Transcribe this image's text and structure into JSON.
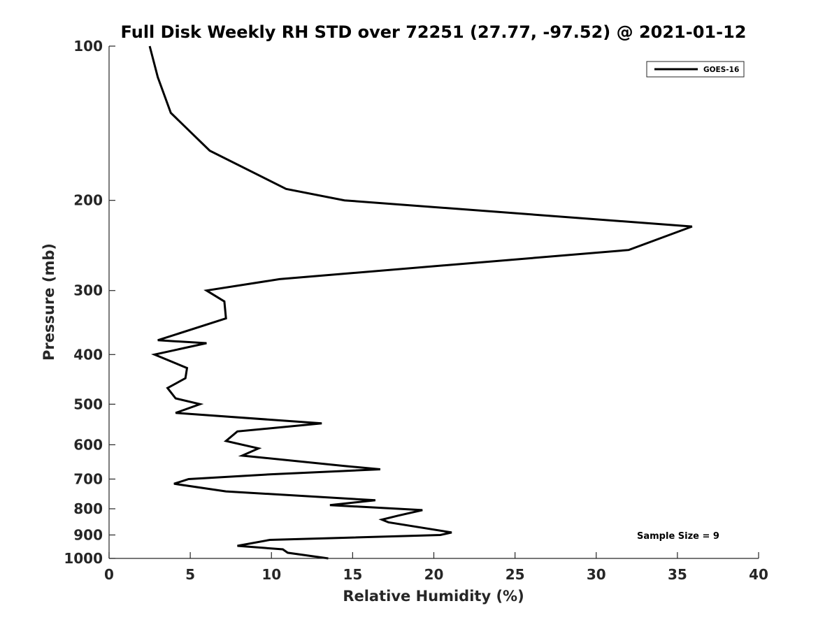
{
  "chart_data": {
    "type": "line",
    "title": "Full Disk Weekly RH STD over 72251 (27.77, -97.52) @ 2021-01-12",
    "xlabel": "Relative Humidity (%)",
    "ylabel": "Pressure (mb)",
    "xlim": [
      0,
      40
    ],
    "ylim": [
      100,
      1000
    ],
    "yscale": "log",
    "yreversed": true,
    "x_ticks": [
      0,
      5,
      10,
      15,
      20,
      25,
      30,
      35,
      40
    ],
    "y_ticks": [
      100,
      200,
      300,
      400,
      500,
      600,
      700,
      800,
      900,
      1000
    ],
    "grid": false,
    "legend_position": "top-right",
    "annotation": "Sample Size = 9",
    "series": [
      {
        "name": "GOES-16",
        "color": "#000000",
        "points": [
          [
            2.5,
            100
          ],
          [
            3.0,
            115
          ],
          [
            3.8,
            135
          ],
          [
            6.2,
            160
          ],
          [
            10.9,
            190
          ],
          [
            14.5,
            200
          ],
          [
            35.9,
            225
          ],
          [
            32.0,
            250
          ],
          [
            10.5,
            285
          ],
          [
            6.0,
            300
          ],
          [
            7.1,
            315
          ],
          [
            7.2,
            340
          ],
          [
            3.0,
            375
          ],
          [
            6.0,
            380
          ],
          [
            2.8,
            400
          ],
          [
            4.8,
            425
          ],
          [
            4.7,
            445
          ],
          [
            3.6,
            465
          ],
          [
            4.1,
            487
          ],
          [
            5.6,
            500
          ],
          [
            4.1,
            520
          ],
          [
            13.1,
            545
          ],
          [
            7.9,
            565
          ],
          [
            7.2,
            590
          ],
          [
            9.2,
            610
          ],
          [
            8.2,
            630
          ],
          [
            14.5,
            660
          ],
          [
            16.7,
            670
          ],
          [
            10.0,
            685
          ],
          [
            4.9,
            700
          ],
          [
            4.0,
            715
          ],
          [
            7.2,
            740
          ],
          [
            16.4,
            770
          ],
          [
            13.6,
            787
          ],
          [
            19.3,
            805
          ],
          [
            17.8,
            825
          ],
          [
            16.8,
            840
          ],
          [
            17.2,
            850
          ],
          [
            21.1,
            890
          ],
          [
            20.4,
            900
          ],
          [
            9.9,
            920
          ],
          [
            7.9,
            945
          ],
          [
            10.7,
            960
          ],
          [
            11.0,
            975
          ],
          [
            13.5,
            1000
          ]
        ]
      }
    ]
  }
}
